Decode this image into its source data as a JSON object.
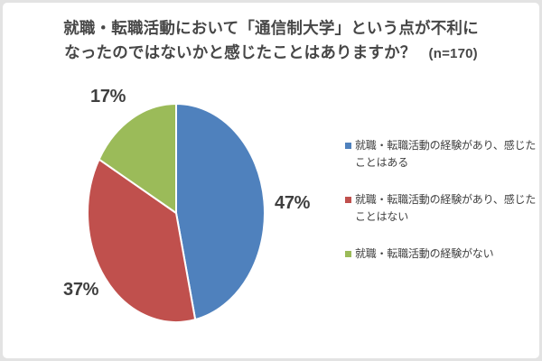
{
  "title": {
    "line1": "就職・転職活動において「通信制大学」という点が不利に",
    "line2": "なったのではないかと感じたことはありますか？",
    "sample_note": "(n=170)"
  },
  "chart_data": {
    "type": "pie",
    "title": "就職・転職活動において「通信制大学」という点が不利になったのではないかと感じたことはありますか？",
    "sample_size": 170,
    "unit": "%",
    "start_angle_deg": 0,
    "direction": "clockwise",
    "legend_position": "right",
    "slices": [
      {
        "label": "就職・転職活動の経験があり、感じたことはある",
        "value": 47,
        "pct_label": "47%",
        "color": "#4F81BD"
      },
      {
        "label": "就職・転職活動の経験があり、感じたことはない",
        "value": 37,
        "pct_label": "37%",
        "color": "#C0504D"
      },
      {
        "label": "就職・転職活動の経験がない",
        "value": 17,
        "pct_label": "17%",
        "color": "#9BBB59"
      }
    ]
  },
  "legend": {
    "items": [
      {
        "line1": "就職・転職活動の経験があり、感じた",
        "line2": "ことはある"
      },
      {
        "line1": "就職・転職活動の経験があり、感じた",
        "line2": "ことはない"
      },
      {
        "line1": "就職・転職活動の経験がない",
        "line2": ""
      }
    ]
  },
  "colors": {
    "text": "#404040",
    "title_text": "#474747",
    "slice_border": "#ffffff",
    "panel_border": "#e3e3e3"
  }
}
